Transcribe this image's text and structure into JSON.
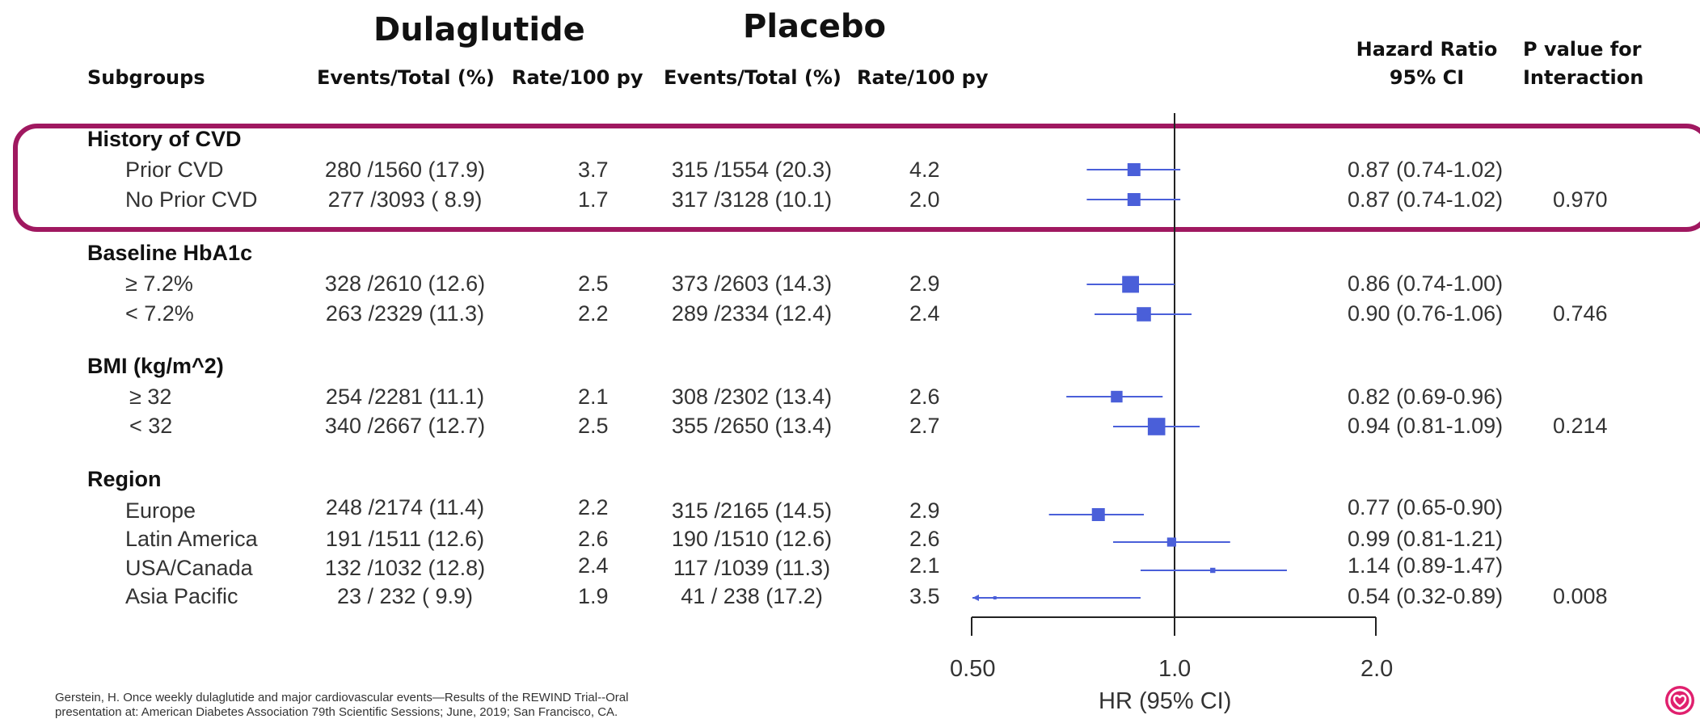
{
  "header": {
    "dulaglutide_title": "Dulaglutide",
    "placebo_title": "Placebo",
    "subgroups": "Subgroups",
    "dula_events": "Events/Total (%)",
    "dula_rate": "Rate/100 py",
    "plac_events": "Events/Total (%)",
    "plac_rate": "Rate/100 py",
    "hr_line1": "Hazard Ratio",
    "hr_line2": "95% CI",
    "p_line1": "P value for",
    "p_line2": "Interaction"
  },
  "sections": [
    {
      "title": "History of CVD",
      "p_interaction": "0.970",
      "rows": [
        {
          "label": "Prior CVD",
          "dula_events": "280 /1560 (17.9)",
          "dula_rate": "3.7",
          "plac_events": "315 /1554 (20.3)",
          "plac_rate": "4.2",
          "hr_text": "0.87 (0.74-1.02)"
        },
        {
          "label": "No Prior CVD",
          "dula_events": "277 /3093 ( 8.9)",
          "dula_rate": "1.7",
          "plac_events": "317 /3128 (10.1)",
          "plac_rate": "2.0",
          "hr_text": "0.87 (0.74-1.02)"
        }
      ]
    },
    {
      "title": "Baseline HbA1c",
      "p_interaction": "0.746",
      "rows": [
        {
          "label": "≥ 7.2%",
          "dula_events": "328 /2610 (12.6)",
          "dula_rate": "2.5",
          "plac_events": "373 /2603 (14.3)",
          "plac_rate": "2.9",
          "hr_text": "0.86 (0.74-1.00)"
        },
        {
          "label": "< 7.2%",
          "dula_events": "263 /2329 (11.3)",
          "dula_rate": "2.2",
          "plac_events": "289 /2334 (12.4)",
          "plac_rate": "2.4",
          "hr_text": "0.90 (0.76-1.06)"
        }
      ]
    },
    {
      "title": "BMI (kg/m^2)",
      "p_interaction": "0.214",
      "rows": [
        {
          "label": "≥ 32",
          "dula_events": "254 /2281 (11.1)",
          "dula_rate": "2.1",
          "plac_events": "308 /2302 (13.4)",
          "plac_rate": "2.6",
          "hr_text": "0.82 (0.69-0.96)"
        },
        {
          "label": "< 32",
          "dula_events": "340 /2667 (12.7)",
          "dula_rate": "2.5",
          "plac_events": "355 /2650 (13.4)",
          "plac_rate": "2.7",
          "hr_text": "0.94 (0.81-1.09)"
        }
      ]
    },
    {
      "title": "Region",
      "p_interaction": "0.008",
      "rows": [
        {
          "label": "Europe",
          "dula_events": "248 /2174 (11.4)",
          "dula_rate": "2.2",
          "plac_events": "315 /2165 (14.5)",
          "plac_rate": "2.9",
          "hr_text": "0.77 (0.65-0.90)"
        },
        {
          "label": "Latin America",
          "dula_events": "191 /1511 (12.6)",
          "dula_rate": "2.6",
          "plac_events": "190 /1510 (12.6)",
          "plac_rate": "2.6",
          "hr_text": "0.99 (0.81-1.21)"
        },
        {
          "label": "USA/Canada",
          "dula_events": "132 /1032 (12.8)",
          "dula_rate": "2.4",
          "plac_events": "117 /1039 (11.3)",
          "plac_rate": "2.1",
          "hr_text": "1.14 (0.89-1.47)"
        },
        {
          "label": "Asia Pacific",
          "dula_events": "23 / 232 ( 9.9)",
          "dula_rate": "1.9",
          "plac_events": "41 / 238 (17.2)",
          "plac_rate": "3.5",
          "hr_text": "0.54 (0.32-0.89)"
        }
      ]
    }
  ],
  "chart_data": {
    "type": "forest",
    "x_scale": "log",
    "xlim": [
      0.5,
      2.0
    ],
    "xticks": [
      "0.50",
      "1.0",
      "2.0"
    ],
    "xlabel": "HR (95% CI)",
    "reference_line": 1.0,
    "marker_color": "#4a5fd9",
    "points": [
      {
        "subgroup": "Prior CVD",
        "hr": 0.87,
        "lo": 0.74,
        "hi": 1.02,
        "weight": 1.0
      },
      {
        "subgroup": "No Prior CVD",
        "hr": 0.87,
        "lo": 0.74,
        "hi": 1.02,
        "weight": 1.0
      },
      {
        "subgroup": "≥ 7.2%",
        "hr": 0.86,
        "lo": 0.74,
        "hi": 1.0,
        "weight": 1.3
      },
      {
        "subgroup": "< 7.2%",
        "hr": 0.9,
        "lo": 0.76,
        "hi": 1.06,
        "weight": 1.1
      },
      {
        "subgroup": "≥ 32",
        "hr": 0.82,
        "lo": 0.69,
        "hi": 0.96,
        "weight": 0.9
      },
      {
        "subgroup": "< 32",
        "hr": 0.94,
        "lo": 0.81,
        "hi": 1.09,
        "weight": 1.35
      },
      {
        "subgroup": "Europe",
        "hr": 0.77,
        "lo": 0.65,
        "hi": 0.9,
        "weight": 1.0
      },
      {
        "subgroup": "Latin America",
        "hr": 0.99,
        "lo": 0.81,
        "hi": 1.21,
        "weight": 0.7
      },
      {
        "subgroup": "USA/Canada",
        "hr": 1.14,
        "lo": 0.89,
        "hi": 1.47,
        "weight": 0.4
      },
      {
        "subgroup": "Asia Pacific",
        "hr": 0.54,
        "lo": 0.32,
        "hi": 0.89,
        "weight": 0.25
      }
    ]
  },
  "footnote": {
    "line1": "Gerstein, H. Once weekly dulaglutide and major cardiovascular events—Results of the REWIND Trial--Oral",
    "line2": "presentation at: American Diabetes Association 79th Scientific Sessions; June, 2019; San Francisco, CA."
  },
  "colors": {
    "highlight": "#a01860",
    "marker": "#4a5fd9"
  },
  "logo": {
    "icon": "brand-logo-icon"
  }
}
